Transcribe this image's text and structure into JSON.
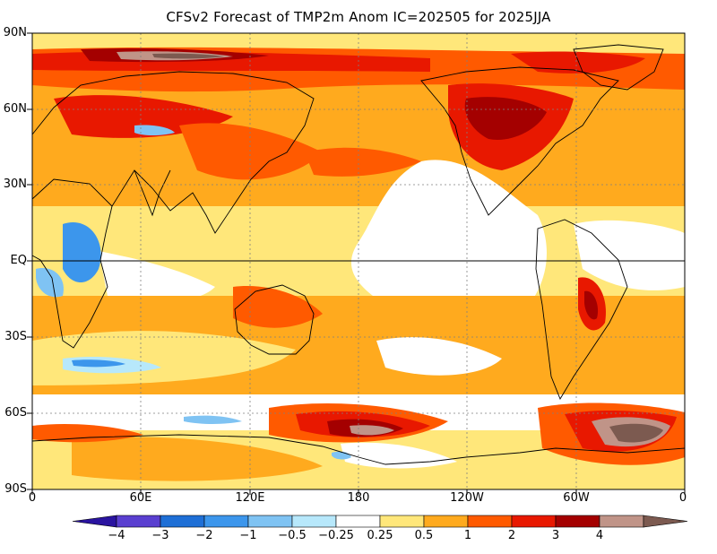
{
  "title": "CFSv2 Forecast of TMP2m Anom IC=202505 for 2025JJA",
  "lat_labels": [
    "90N",
    "60N",
    "30N",
    "EQ",
    "30S",
    "60S",
    "90S"
  ],
  "lon_labels": [
    "0",
    "60E",
    "120E",
    "180",
    "120W",
    "60W",
    "0"
  ],
  "colorbar": {
    "levels": [
      "−4",
      "−3",
      "−2",
      "−1",
      "−0.5",
      "−0.25",
      "0.25",
      "0.5",
      "1",
      "2",
      "3",
      "4"
    ],
    "colors": [
      "#2a14a0",
      "#5a3fd0",
      "#1e6fd6",
      "#3c96ec",
      "#7fc3f3",
      "#b7e8fb",
      "#ffffff",
      "#ffe77a",
      "#ffaa1e",
      "#ff5a00",
      "#e81800",
      "#a40000",
      "#c09488",
      "#7c5a50"
    ]
  },
  "map_colors": {
    "neutral": "#ffffff",
    "weak_warm": "#ffe77a",
    "warm": "#ffaa1e",
    "warmer": "#ff5a00",
    "hot": "#e81800",
    "very_hot": "#a40000",
    "extreme_hot": "#c09488",
    "max_hot": "#7c5a50",
    "weak_cool": "#b7e8fb",
    "cool": "#7fc3f3",
    "cooler": "#3c96ec",
    "coastline": "#000000",
    "grid": "#808080"
  }
}
